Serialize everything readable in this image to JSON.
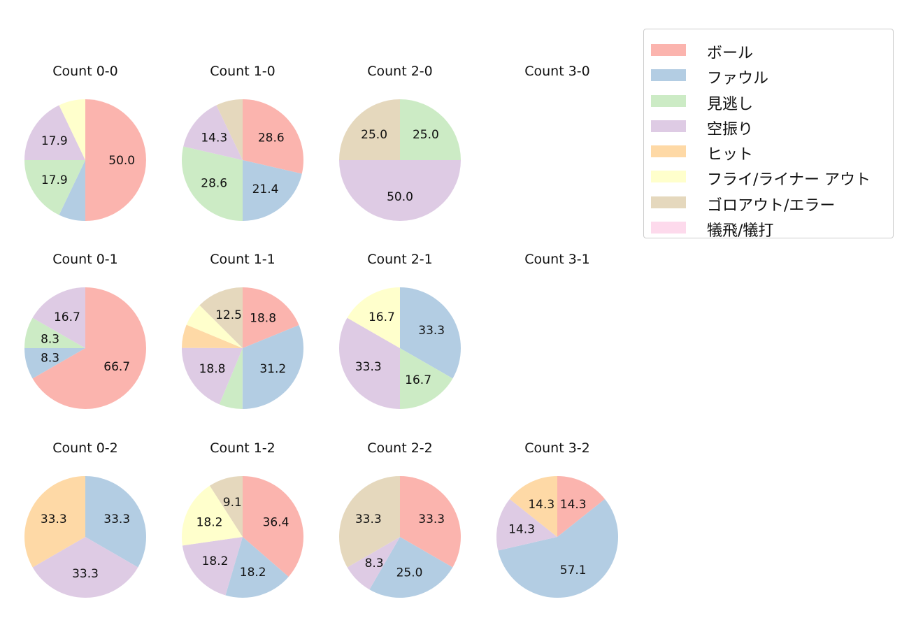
{
  "chart_data": {
    "type": "pie",
    "categories": [
      "ボール",
      "ファウル",
      "見逃し",
      "空振り",
      "ヒット",
      "フライ/ライナー アウト",
      "ゴロアウト/エラー",
      "犠飛/犠打"
    ],
    "colors": [
      "#fbb4ae",
      "#b3cde3",
      "#ccebc5",
      "#decbe4",
      "#fed9a6",
      "#ffffcc",
      "#e5d8bd",
      "#fddaec"
    ],
    "legend_position": "top-right",
    "charts": [
      {
        "title": "Count 0-0",
        "values": [
          50.0,
          7.1,
          17.9,
          17.9,
          0,
          7.1,
          0,
          0
        ],
        "labels": [
          "50.0",
          "",
          "17.9",
          "17.9",
          "",
          "",
          "",
          ""
        ]
      },
      {
        "title": "Count 1-0",
        "values": [
          28.6,
          21.4,
          28.6,
          14.3,
          0,
          0,
          7.1,
          0
        ],
        "labels": [
          "28.6",
          "21.4",
          "28.6",
          "14.3",
          "",
          "",
          "",
          ""
        ]
      },
      {
        "title": "Count 2-0",
        "values": [
          0,
          0,
          25.0,
          50.0,
          0,
          0,
          25.0,
          0
        ],
        "labels": [
          "",
          "",
          "25.0",
          "50.0",
          "",
          "",
          "25.0",
          ""
        ]
      },
      {
        "title": "Count 3-0",
        "values": [],
        "labels": []
      },
      {
        "title": "Count 0-1",
        "values": [
          66.7,
          8.3,
          8.3,
          16.7,
          0,
          0,
          0,
          0
        ],
        "labels": [
          "66.7",
          "8.3",
          "8.3",
          "16.7",
          "",
          "",
          "",
          ""
        ]
      },
      {
        "title": "Count 1-1",
        "values": [
          18.8,
          31.2,
          6.2,
          18.8,
          6.2,
          6.2,
          12.5,
          0
        ],
        "labels": [
          "18.8",
          "31.2",
          "",
          "18.8",
          "",
          "",
          "12.5",
          ""
        ]
      },
      {
        "title": "Count 2-1",
        "values": [
          0,
          33.3,
          16.7,
          33.3,
          0,
          16.7,
          0,
          0
        ],
        "labels": [
          "",
          "33.3",
          "16.7",
          "33.3",
          "",
          "16.7",
          "",
          ""
        ]
      },
      {
        "title": "Count 3-1",
        "values": [],
        "labels": []
      },
      {
        "title": "Count 0-2",
        "values": [
          0,
          33.3,
          0,
          33.3,
          33.3,
          0,
          0,
          0
        ],
        "labels": [
          "",
          "33.3",
          "",
          "33.3",
          "33.3",
          "",
          "",
          ""
        ]
      },
      {
        "title": "Count 1-2",
        "values": [
          36.4,
          18.2,
          0,
          18.2,
          0,
          18.2,
          9.1,
          0
        ],
        "labels": [
          "36.4",
          "18.2",
          "",
          "18.2",
          "",
          "18.2",
          "9.1",
          ""
        ]
      },
      {
        "title": "Count 2-2",
        "values": [
          33.3,
          25.0,
          0,
          8.3,
          0,
          0,
          33.3,
          0
        ],
        "labels": [
          "33.3",
          "25.0",
          "",
          "8.3",
          "",
          "",
          "33.3",
          ""
        ]
      },
      {
        "title": "Count 3-2",
        "values": [
          14.3,
          57.1,
          0,
          14.3,
          14.3,
          0,
          0,
          0
        ],
        "labels": [
          "14.3",
          "57.1",
          "",
          "14.3",
          "14.3",
          "",
          "",
          ""
        ]
      }
    ]
  }
}
